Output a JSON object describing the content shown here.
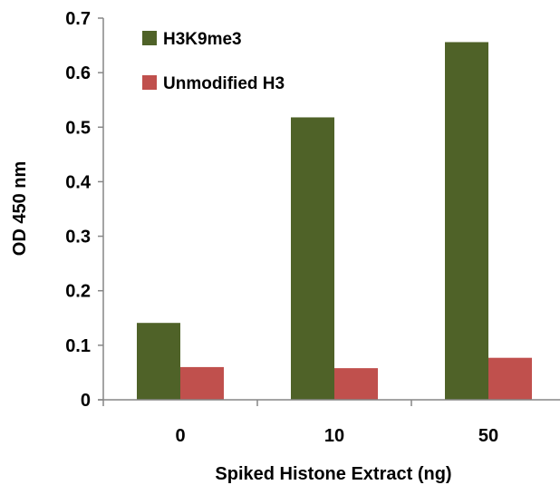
{
  "chart_data": {
    "type": "bar",
    "title": "",
    "xlabel": "Spiked Histone Extract (ng)",
    "ylabel": "OD 450 nm",
    "categories": [
      "0",
      "10",
      "50"
    ],
    "series": [
      {
        "name": "H3K9me3",
        "color": "#4f6228",
        "values": [
          0.141,
          0.518,
          0.656
        ]
      },
      {
        "name": "Unmodified H3",
        "color": "#c0504d",
        "values": [
          0.06,
          0.058,
          0.077
        ]
      }
    ],
    "ylim": [
      0,
      0.7
    ],
    "yticks": [
      "0",
      "0.1",
      "0.2",
      "0.3",
      "0.4",
      "0.5",
      "0.6",
      "0.7"
    ],
    "grid": false,
    "legend": "top-left"
  }
}
